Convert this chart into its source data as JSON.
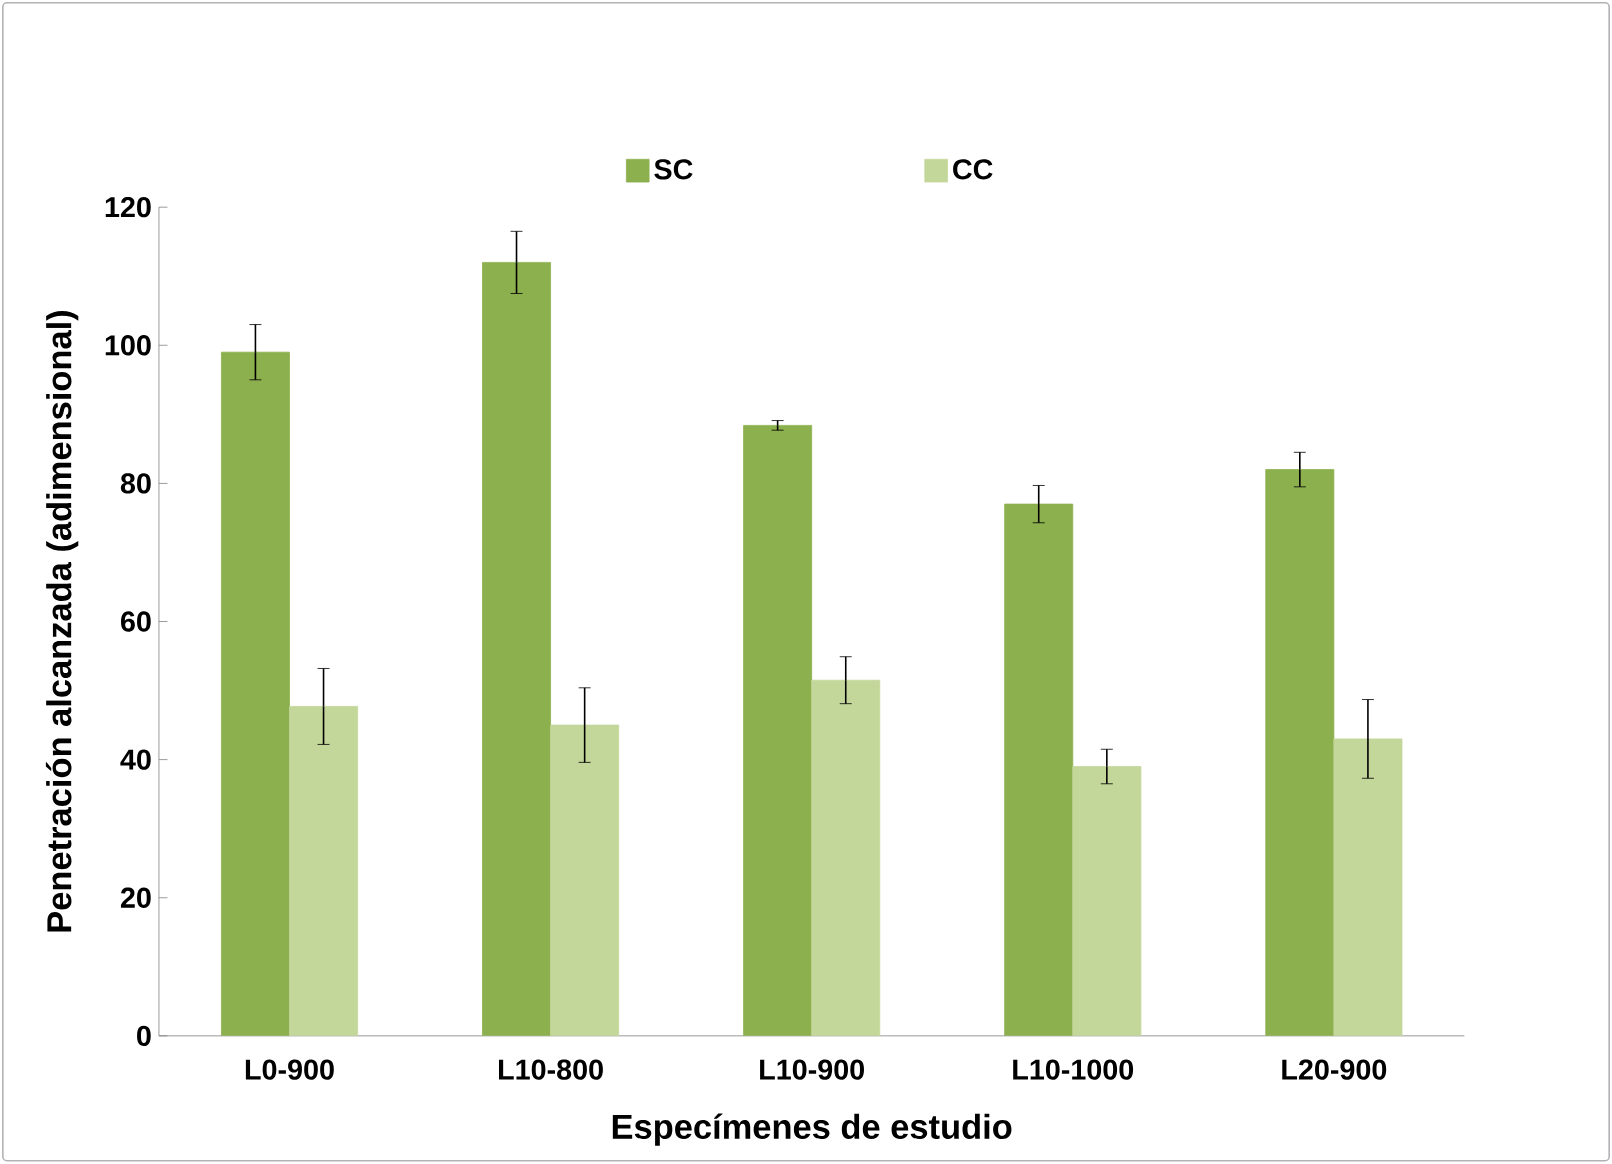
{
  "chart_data": {
    "type": "bar",
    "xlabel": "Especímenes de estudio",
    "ylabel": "Penetración alcanzada (adimensional)",
    "categories": [
      "L0-900",
      "L10-800",
      "L10-900",
      "L10-1000",
      "L20-900"
    ],
    "series": [
      {
        "name": "SC",
        "color": "#8db04f",
        "values": [
          99,
          112,
          88.4,
          77,
          82
        ],
        "errors": [
          4,
          4.5,
          0.7,
          2.7,
          2.5
        ]
      },
      {
        "name": "CC",
        "color": "#c4d79b",
        "values": [
          47.7,
          45,
          51.5,
          39,
          43
        ],
        "errors": [
          5.5,
          5.4,
          3.4,
          2.5,
          5.7
        ]
      }
    ],
    "ylim": [
      0,
      120
    ],
    "yticks": [
      0,
      20,
      40,
      60,
      80,
      100,
      120
    ],
    "grid": false,
    "legend": "top"
  }
}
